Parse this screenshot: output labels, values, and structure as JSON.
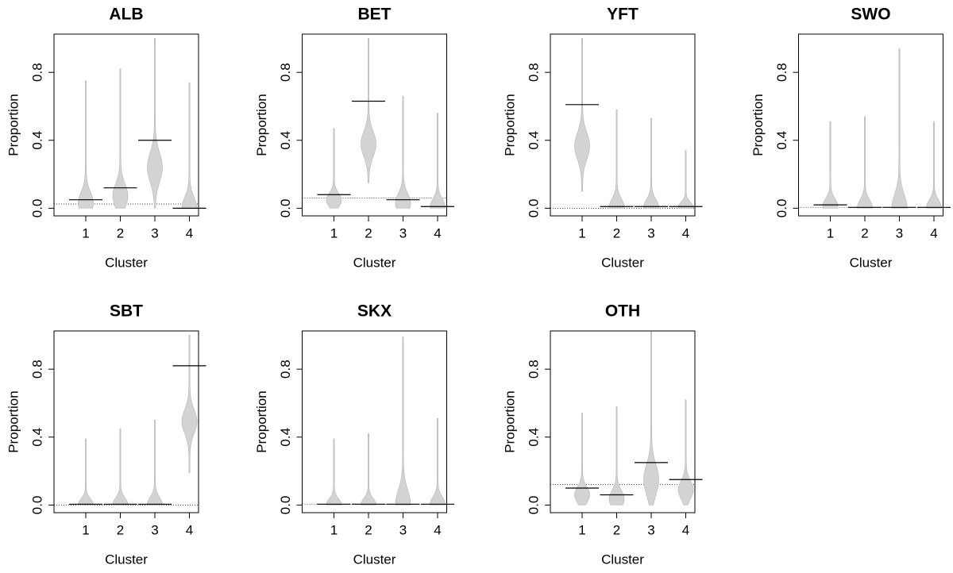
{
  "chart_data": [
    {
      "type": "violin",
      "title": "ALB",
      "xlabel": "Cluster",
      "ylabel": "Proportion",
      "categories": [
        "1",
        "2",
        "3",
        "4"
      ],
      "means": [
        0.05,
        0.12,
        0.4,
        0.0
      ],
      "mins": [
        0,
        0,
        0,
        0
      ],
      "maxs": [
        0.75,
        0.82,
        1.0,
        0.74
      ],
      "reference": 0.025,
      "ylim": [
        -0.045,
        1.025
      ],
      "yticks": [
        {
          "value": 0,
          "label": "0.0"
        },
        0.4,
        0.8
      ],
      "color": "#d3d3d3"
    },
    {
      "type": "violin",
      "title": "BET",
      "xlabel": "Cluster",
      "ylabel": "Proportion",
      "categories": [
        "1",
        "2",
        "3",
        "4"
      ],
      "means": [
        0.08,
        0.63,
        0.05,
        0.01
      ],
      "mins": [
        0,
        0.15,
        0,
        0
      ],
      "maxs": [
        0.47,
        1.0,
        0.66,
        0.56
      ],
      "reference": 0.06,
      "ylim": [
        -0.045,
        1.025
      ],
      "yticks": [
        {
          "value": 0,
          "label": "0.0"
        },
        0.4,
        0.8
      ],
      "color": "#d3d3d3"
    },
    {
      "type": "violin",
      "title": "YFT",
      "xlabel": "Cluster",
      "ylabel": "Proportion",
      "categories": [
        "1",
        "2",
        "3",
        "4"
      ],
      "means": [
        0.61,
        0.01,
        0.01,
        0.01
      ],
      "mins": [
        0.1,
        0,
        0,
        0
      ],
      "maxs": [
        1.0,
        0.58,
        0.53,
        0.34
      ],
      "reference": 0.0,
      "ylim": [
        -0.045,
        1.025
      ],
      "yticks": [
        {
          "value": 0,
          "label": "0.0"
        },
        0.4,
        0.8
      ],
      "color": "#d3d3d3"
    },
    {
      "type": "violin",
      "title": "SWO",
      "xlabel": "Cluster",
      "ylabel": "Proportion",
      "categories": [
        "1",
        "2",
        "3",
        "4"
      ],
      "means": [
        0.02,
        0.005,
        0.005,
        0.005
      ],
      "mins": [
        0,
        0,
        0,
        0
      ],
      "maxs": [
        0.51,
        0.54,
        0.94,
        0.51
      ],
      "reference": 0.005,
      "ylim": [
        -0.045,
        1.025
      ],
      "yticks": [
        {
          "value": 0,
          "label": "0.0"
        },
        0.4,
        0.8
      ],
      "color": "#d3d3d3"
    },
    {
      "type": "violin",
      "title": "SBT",
      "xlabel": "Cluster",
      "ylabel": "Proportion",
      "categories": [
        "1",
        "2",
        "3",
        "4"
      ],
      "means": [
        0.005,
        0.005,
        0.005,
        0.82
      ],
      "mins": [
        0,
        0,
        0,
        0.19
      ],
      "maxs": [
        0.39,
        0.45,
        0.5,
        1.0
      ],
      "reference": 0.0,
      "ylim": [
        -0.045,
        1.025
      ],
      "yticks": [
        {
          "value": 0,
          "label": "0.0"
        },
        0.4,
        0.8
      ],
      "color": "#d3d3d3"
    },
    {
      "type": "violin",
      "title": "SKX",
      "xlabel": "Cluster",
      "ylabel": "Proportion",
      "categories": [
        "1",
        "2",
        "3",
        "4"
      ],
      "means": [
        0.005,
        0.005,
        0.005,
        0.005
      ],
      "mins": [
        0,
        0,
        0,
        0
      ],
      "maxs": [
        0.39,
        0.42,
        0.99,
        0.51
      ],
      "reference": 0.005,
      "ylim": [
        -0.045,
        1.025
      ],
      "yticks": [
        {
          "value": 0,
          "label": "0.0"
        },
        0.4,
        0.8
      ],
      "color": "#d3d3d3"
    },
    {
      "type": "violin",
      "title": "OTH",
      "xlabel": "Cluster",
      "ylabel": "Proportion",
      "categories": [
        "1",
        "2",
        "3",
        "4"
      ],
      "means": [
        0.1,
        0.06,
        0.25,
        0.15
      ],
      "mins": [
        0,
        0,
        0,
        0
      ],
      "maxs": [
        0.54,
        0.58,
        1.02,
        0.62
      ],
      "reference": 0.12,
      "ylim": [
        -0.045,
        1.025
      ],
      "yticks": [
        {
          "value": 0,
          "label": "0.0"
        },
        0.4,
        0.8
      ],
      "color": "#d3d3d3"
    }
  ]
}
